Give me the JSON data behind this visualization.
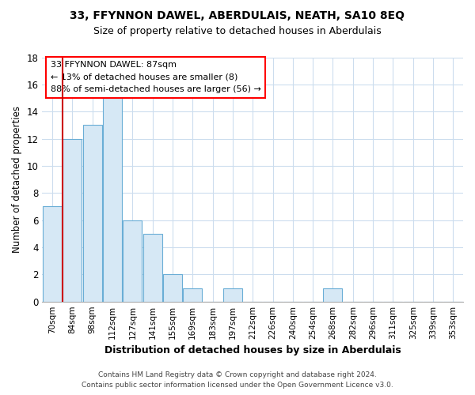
{
  "title": "33, FFYNNON DAWEL, ABERDULAIS, NEATH, SA10 8EQ",
  "subtitle": "Size of property relative to detached houses in Aberdulais",
  "xlabel": "Distribution of detached houses by size in Aberdulais",
  "ylabel": "Number of detached properties",
  "bar_labels": [
    "70sqm",
    "84sqm",
    "98sqm",
    "112sqm",
    "127sqm",
    "141sqm",
    "155sqm",
    "169sqm",
    "183sqm",
    "197sqm",
    "212sqm",
    "226sqm",
    "240sqm",
    "254sqm",
    "268sqm",
    "282sqm",
    "296sqm",
    "311sqm",
    "325sqm",
    "339sqm",
    "353sqm"
  ],
  "bar_values": [
    7,
    12,
    13,
    15,
    6,
    5,
    2,
    1,
    0,
    1,
    0,
    0,
    0,
    0,
    1,
    0,
    0,
    0,
    0,
    0,
    0
  ],
  "bar_fill_color": "#d6e8f5",
  "bar_edge_color": "#6aaed6",
  "reference_line_x": 0.5,
  "reference_line_color": "#cc0000",
  "ylim": [
    0,
    18
  ],
  "yticks": [
    0,
    2,
    4,
    6,
    8,
    10,
    12,
    14,
    16,
    18
  ],
  "annotation_title": "33 FFYNNON DAWEL: 87sqm",
  "annotation_line1": "← 13% of detached houses are smaller (8)",
  "annotation_line2": "88% of semi-detached houses are larger (56) →",
  "footer_line1": "Contains HM Land Registry data © Crown copyright and database right 2024.",
  "footer_line2": "Contains public sector information licensed under the Open Government Licence v3.0.",
  "grid_color": "#ccddee",
  "background_color": "#ffffff"
}
